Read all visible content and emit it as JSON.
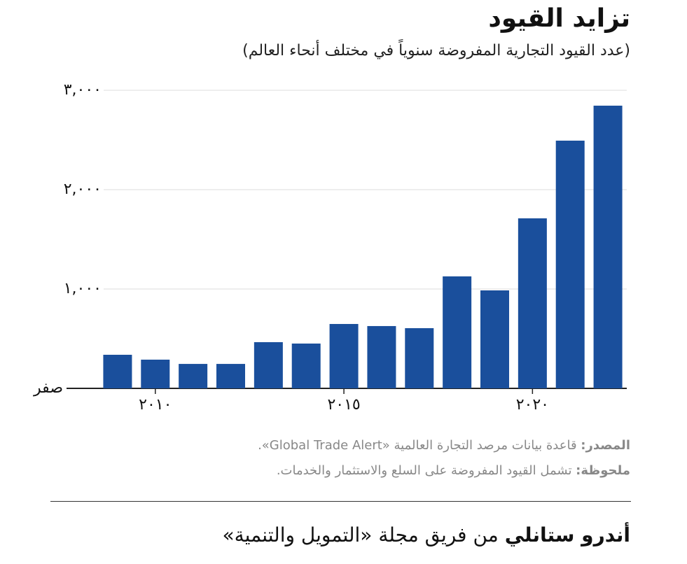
{
  "chart_data": {
    "type": "bar",
    "title": "تزايد القيود",
    "subtitle": "(عدد القيود التجارية المفروضة سنوياً في مختلف أنحاء العالم)",
    "categories": [
      null,
      "٢٠١٠",
      null,
      null,
      null,
      null,
      "٢٠١٥",
      null,
      null,
      null,
      null,
      "٢٠٢٠",
      null,
      null
    ],
    "values": [
      338,
      289,
      246,
      246,
      465,
      451,
      648,
      627,
      606,
      1127,
      986,
      1711,
      2493,
      2845
    ],
    "color": "#1a4f9c",
    "ylim": [
      0,
      3000
    ],
    "yticks": [
      {
        "value": 0,
        "label": "صفر"
      },
      {
        "value": 1000,
        "label": "١,٠٠٠"
      },
      {
        "value": 2000,
        "label": "٢,٠٠٠"
      },
      {
        "value": 3000,
        "label": "٣,٠٠٠"
      }
    ],
    "grid": true
  },
  "footer": {
    "source_label": "المصدر:",
    "source_text": " قاعدة بيانات مرصد التجارة العالمية «Global Trade Alert».",
    "note_label": "ملحوظة:",
    "note_text": " تشمل القيود المفروضة على السلع والاستثمار والخدمات.",
    "author": "أندرو ستانلي",
    "author_rest": " من فريق مجلة «التمويل والتنمية»"
  }
}
